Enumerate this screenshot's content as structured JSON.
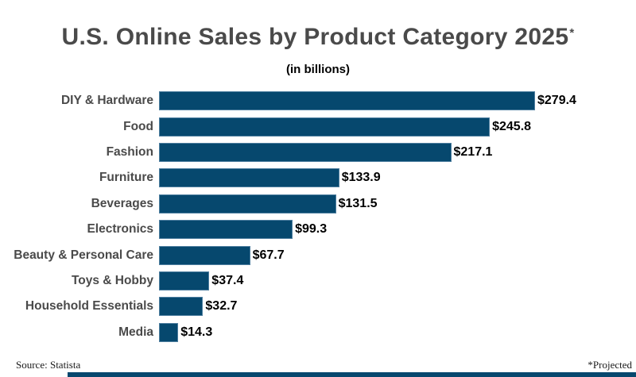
{
  "page": {
    "title": "U.S. Online Sales by Product Category 2025",
    "title_footnote_marker": "*",
    "subtitle": "(in billions)",
    "source_note": "Source: Statista",
    "projected_note": "*Projected"
  },
  "colors": {
    "bar_fill": "#06486E",
    "bar_edge": "#5D89A9",
    "title_text": "#4A4A4A",
    "category_text": "#4A4A4A",
    "value_text": "#000000",
    "footnote_text": "#1A1A1A",
    "bottom_accent": "#06486E",
    "background": "#FFFFFF"
  },
  "chart_data": {
    "type": "bar",
    "orientation": "horizontal",
    "title": "U.S. Online Sales by Product Category 2025*",
    "subtitle": "(in billions)",
    "unit": "USD billions",
    "categories": [
      "DIY & Hardware",
      "Food",
      "Fashion",
      "Furniture",
      "Beverages",
      "Electronics",
      "Beauty & Personal Care",
      "Toys & Hobby",
      "Household Essentials",
      "Media"
    ],
    "values": [
      279.4,
      245.8,
      217.1,
      133.9,
      131.5,
      99.3,
      67.7,
      37.4,
      32.7,
      14.3
    ],
    "value_labels": [
      "$279.4",
      "$245.8",
      "$217.1",
      "$133.9",
      "$131.5",
      "$99.3",
      "$67.7",
      "$37.4",
      "$32.7",
      "$14.3"
    ],
    "xlim": [
      0,
      285
    ],
    "grid": false,
    "legend": false,
    "bar_color": "#06486E",
    "annotations": [
      "Source: Statista",
      "*Projected"
    ]
  }
}
